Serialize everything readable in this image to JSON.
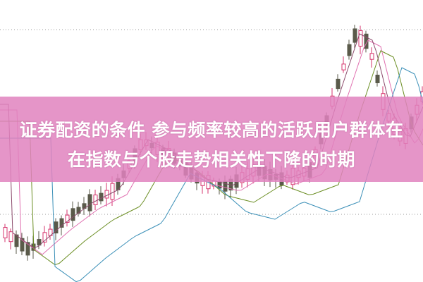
{
  "headline": {
    "line1": "证券配资的条件 参与频率较高的活跃用户群体在",
    "line2": "在指数与个股走势相关性下降的时期"
  },
  "colors": {
    "banner": "#e182be",
    "candle_up": "#d6336c",
    "candle_down": "#5a5a4a",
    "grid": "#999999"
  }
}
